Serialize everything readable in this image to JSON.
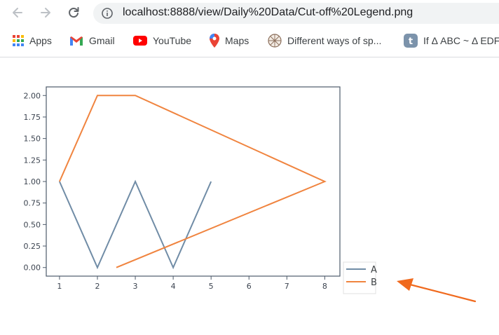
{
  "browser": {
    "url": "localhost:8888/view/Daily%20Data/Cut-off%20Legend.png",
    "bookmarks": [
      {
        "label": "Apps",
        "icon": "apps-grid-icon"
      },
      {
        "label": "Gmail",
        "icon": "gmail-icon"
      },
      {
        "label": "YouTube",
        "icon": "youtube-icon"
      },
      {
        "label": "Maps",
        "icon": "maps-pin-icon"
      },
      {
        "label": "Different ways of sp...",
        "icon": "site-favicon-icon"
      },
      {
        "label": "If Δ ABC ~ Δ EDF",
        "icon": "site-favicon-icon"
      }
    ]
  },
  "chart_data": {
    "type": "line",
    "title": "",
    "xlabel": "",
    "ylabel": "",
    "xlim": [
      0.65,
      8.4
    ],
    "ylim": [
      -0.1,
      2.1
    ],
    "xticks": [
      1,
      2,
      3,
      4,
      5,
      6,
      7,
      8
    ],
    "yticks": [
      "0.00",
      "0.25",
      "0.50",
      "0.75",
      "1.00",
      "1.25",
      "1.50",
      "1.75",
      "2.00"
    ],
    "grid": false,
    "legend_position": "outside-right, bottom (cut off)",
    "series": [
      {
        "name": "A",
        "color": "#708ca6",
        "x": [
          1,
          2,
          3,
          4,
          5
        ],
        "y": [
          1,
          0,
          1,
          0,
          1
        ]
      },
      {
        "name": "B",
        "color": "#f0843f",
        "x": [
          2.5,
          8,
          3,
          2,
          1
        ],
        "y": [
          0,
          1,
          2,
          2,
          1
        ]
      }
    ]
  },
  "annotation": {
    "arrow_color": "#f06a1e",
    "target": "legend"
  }
}
